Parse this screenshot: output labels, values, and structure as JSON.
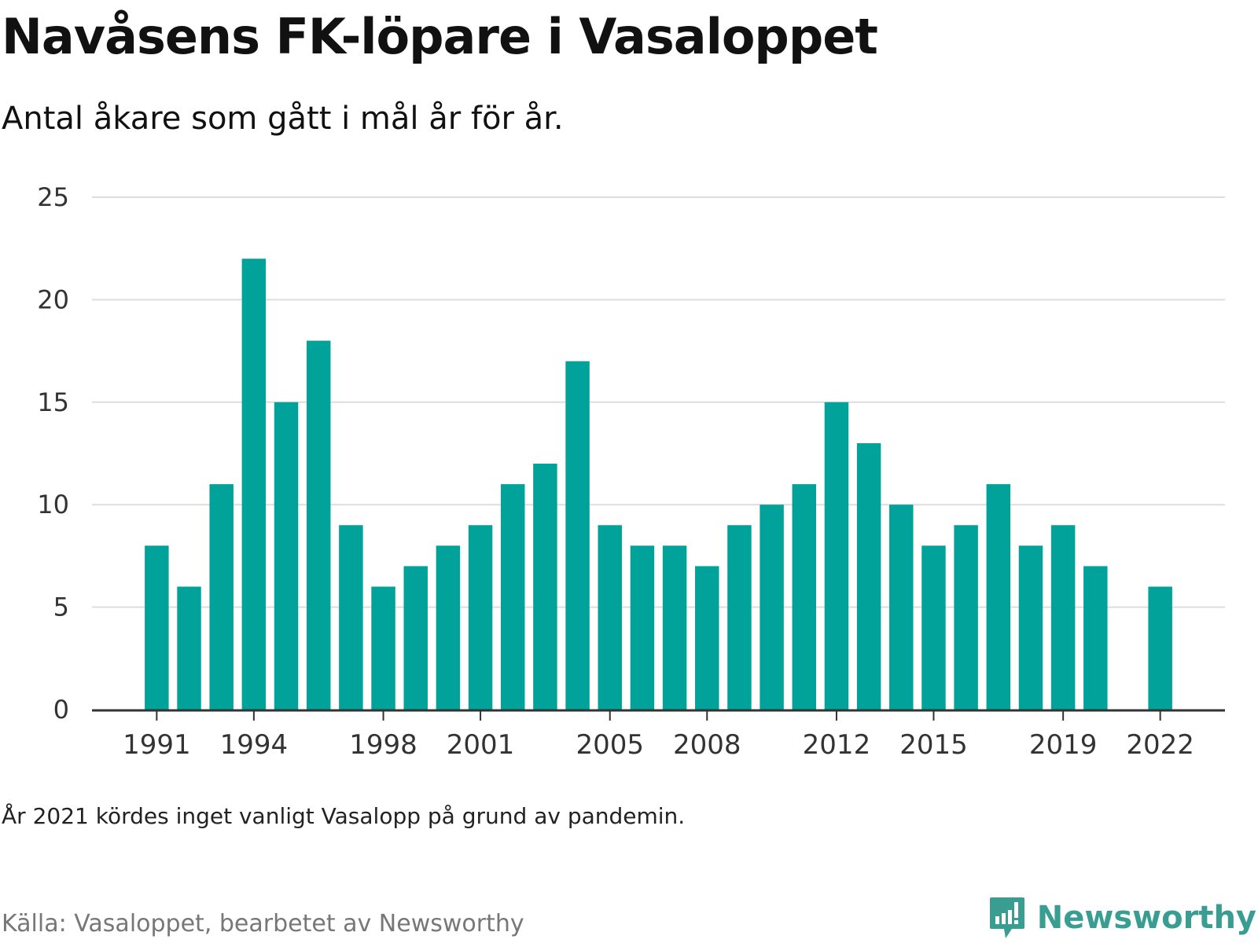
{
  "header": {
    "title": "Navåsens FK-löpare i Vasaloppet",
    "subtitle": "Antal åkare som gått i mål år för år."
  },
  "footer": {
    "note": "År 2021 kördes inget vanligt Vasalopp på grund av pandemin.",
    "source": "Källa: Vasaloppet, bearbetet av Newsworthy",
    "brand": "Newsworthy",
    "brand_icon": "newsworthy-logo-icon"
  },
  "colors": {
    "bar": "#00a29a",
    "grid": "#dddddd",
    "axis": "#333333",
    "brand": "#3a9d92"
  },
  "chart_data": {
    "type": "bar",
    "title": "Navåsens FK-löpare i Vasaloppet",
    "subtitle": "Antal åkare som gått i mål år för år.",
    "xlabel": "",
    "ylabel": "",
    "x": [
      1991,
      1992,
      1993,
      1994,
      1995,
      1996,
      1997,
      1998,
      1999,
      2000,
      2001,
      2002,
      2003,
      2004,
      2005,
      2006,
      2007,
      2008,
      2009,
      2010,
      2011,
      2012,
      2013,
      2014,
      2015,
      2016,
      2017,
      2018,
      2019,
      2020,
      2021,
      2022
    ],
    "values": [
      8,
      6,
      11,
      22,
      15,
      18,
      9,
      6,
      7,
      8,
      9,
      11,
      12,
      17,
      9,
      8,
      8,
      7,
      9,
      10,
      11,
      15,
      13,
      10,
      8,
      9,
      11,
      8,
      9,
      7,
      null,
      6
    ],
    "x_tick_labels": [
      "1991",
      "1994",
      "1998",
      "2001",
      "2005",
      "2008",
      "2012",
      "2015",
      "2019",
      "2022"
    ],
    "y_ticks": [
      0,
      5,
      10,
      15,
      20,
      25
    ],
    "ylim": [
      0,
      25
    ],
    "xlim": [
      1989,
      2024
    ],
    "grid": true,
    "legend": "none"
  }
}
